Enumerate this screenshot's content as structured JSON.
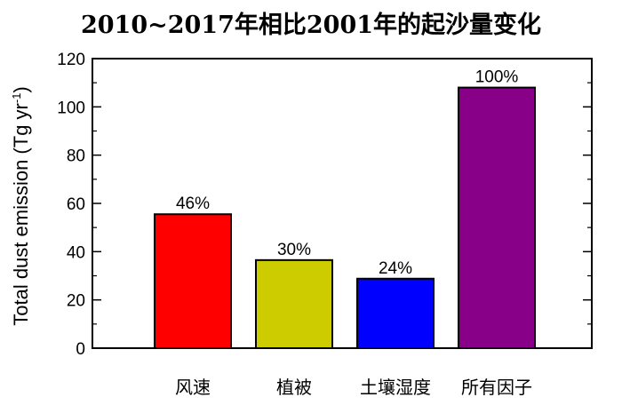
{
  "chart_data": {
    "type": "bar",
    "title": "2010~2017年相比2001年的起沙量变化",
    "ylabel": "Total dust emission (Tg yr",
    "ylabel_superscript": "-1",
    "ylabel_suffix": ")",
    "xlabel": "",
    "ylim": [
      0,
      120
    ],
    "yticks": [
      0,
      20,
      40,
      60,
      80,
      100,
      120
    ],
    "grid": false,
    "categories": [
      "风速",
      "植被",
      "土壤湿度",
      "所有因子"
    ],
    "values": [
      55.5,
      36.5,
      28.8,
      108
    ],
    "data_labels": [
      "46%",
      "30%",
      "24%",
      "100%"
    ],
    "colors": [
      "#ff0000",
      "#cccc00",
      "#0000ff",
      "#880088"
    ]
  }
}
